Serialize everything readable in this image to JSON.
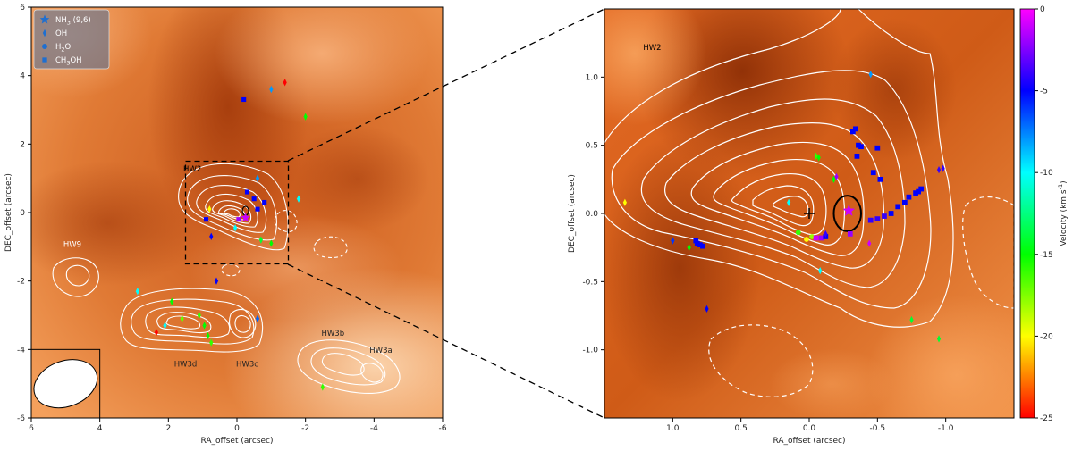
{
  "chart_data": [
    {
      "type": "scatter",
      "panel": "left",
      "xlabel": "RA_offset (arcsec)",
      "ylabel": "DEC_offset (arcsec)",
      "xlim": [
        6,
        -6
      ],
      "ylim": [
        -6,
        6
      ],
      "xticks": [
        "6",
        "4",
        "2",
        "0",
        "-2",
        "-4",
        "-6"
      ],
      "yticks": [
        "6",
        "4",
        "2",
        "0",
        "-2",
        "-4",
        "-6"
      ],
      "legend": {
        "position": "top-left",
        "entries": [
          {
            "marker": "star",
            "label": "NH3 (9,6)",
            "main": "NH",
            "sub": "3",
            "rest": " (9,6)"
          },
          {
            "marker": "diamond",
            "label": "OH",
            "main": "OH",
            "sub": "",
            "rest": ""
          },
          {
            "marker": "circle",
            "label": "H2O",
            "main": "H",
            "sub": "2",
            "rest": "O"
          },
          {
            "marker": "square",
            "label": "CH3OH",
            "main": "CH",
            "sub": "3",
            "rest": "OH"
          }
        ]
      },
      "region_labels": [
        {
          "name": "HW2",
          "x": 1.3,
          "y": 1.2
        },
        {
          "name": "HW9",
          "x": 4.8,
          "y": -1.0
        },
        {
          "name": "HW3d",
          "x": 1.5,
          "y": -4.5
        },
        {
          "name": "HW3c",
          "x": -0.3,
          "y": -4.5
        },
        {
          "name": "HW3b",
          "x": -2.8,
          "y": -3.6
        },
        {
          "name": "HW3a",
          "x": -4.2,
          "y": -4.1
        }
      ],
      "zoom_box": {
        "x": [
          1.5,
          -1.5
        ],
        "y": [
          -1.5,
          1.5
        ]
      },
      "beam": {
        "x": 5.0,
        "y": -5.0,
        "major": 1.0,
        "minor": 0.7,
        "pa_deg": -20
      },
      "points": [
        {
          "type": "diamond",
          "x": -1.4,
          "y": 3.8,
          "v": -30
        },
        {
          "type": "diamond",
          "x": -1.0,
          "y": 3.6,
          "v": -8
        },
        {
          "type": "diamond",
          "x": -2.0,
          "y": 2.8,
          "v": -15
        },
        {
          "type": "square",
          "x": -0.2,
          "y": 3.3,
          "v": -5
        },
        {
          "type": "diamond",
          "x": 0.8,
          "y": 0.1,
          "v": -20
        },
        {
          "type": "square",
          "x": 0.9,
          "y": -0.2,
          "v": -5
        },
        {
          "type": "diamond",
          "x": 0.75,
          "y": -0.7,
          "v": -5
        },
        {
          "type": "square",
          "x": -0.3,
          "y": 0.6,
          "v": -5
        },
        {
          "type": "square",
          "x": -0.5,
          "y": 0.4,
          "v": -5
        },
        {
          "type": "square",
          "x": -0.6,
          "y": 0.1,
          "v": -5
        },
        {
          "type": "square",
          "x": -0.8,
          "y": 0.3,
          "v": -5
        },
        {
          "type": "diamond",
          "x": -0.6,
          "y": 1.0,
          "v": -8
        },
        {
          "type": "square",
          "x": -0.05,
          "y": -0.2,
          "v": -2
        },
        {
          "type": "star",
          "x": -0.25,
          "y": -0.15,
          "v": -1
        },
        {
          "type": "diamond",
          "x": 0.05,
          "y": -0.45,
          "v": -10
        },
        {
          "type": "diamond",
          "x": -0.7,
          "y": -0.8,
          "v": -14
        },
        {
          "type": "diamond",
          "x": -1.0,
          "y": -0.9,
          "v": -15
        },
        {
          "type": "diamond",
          "x": -1.8,
          "y": 0.4,
          "v": -10
        },
        {
          "type": "diamond",
          "x": 0.6,
          "y": -2.0,
          "v": -5
        },
        {
          "type": "diamond",
          "x": 2.9,
          "y": -2.3,
          "v": -10
        },
        {
          "type": "diamond",
          "x": 1.9,
          "y": -2.6,
          "v": -15
        },
        {
          "type": "diamond",
          "x": 1.6,
          "y": -3.1,
          "v": -17
        },
        {
          "type": "diamond",
          "x": 1.1,
          "y": -3.0,
          "v": -16
        },
        {
          "type": "diamond",
          "x": 0.95,
          "y": -3.3,
          "v": -15
        },
        {
          "type": "diamond",
          "x": 0.85,
          "y": -3.6,
          "v": -15
        },
        {
          "type": "diamond",
          "x": 0.75,
          "y": -3.8,
          "v": -16
        },
        {
          "type": "diamond",
          "x": 2.35,
          "y": -3.5,
          "v": -28
        },
        {
          "type": "diamond",
          "x": 2.1,
          "y": -3.3,
          "v": -10
        },
        {
          "type": "diamond",
          "x": -0.6,
          "y": -3.1,
          "v": -7
        },
        {
          "type": "diamond",
          "x": -2.5,
          "y": -5.1,
          "v": -16
        }
      ]
    },
    {
      "type": "scatter",
      "panel": "right",
      "xlabel": "RA_offset (arcsec)",
      "ylabel": "DEC_offset (arcsec)",
      "xlim": [
        1.5,
        -1.5
      ],
      "ylim": [
        -1.5,
        1.5
      ],
      "xticks": [
        "1.0",
        "0.5",
        "0.0",
        "-0.5",
        "-1.0"
      ],
      "yticks": [
        "1.0",
        "0.5",
        "0.0",
        "-0.5",
        "-1.0"
      ],
      "region_labels": [
        {
          "name": "HW2",
          "x": 1.15,
          "y": 1.2
        }
      ],
      "cross": {
        "x": 0.0,
        "y": 0.0
      },
      "ellipse": {
        "x": -0.28,
        "y": 0.0,
        "rx": 0.1,
        "ry": 0.13
      },
      "colorbar": {
        "label": "Velocity (km s",
        "label_sup": "-1",
        "label_end": ")",
        "range": [
          -25,
          0
        ],
        "ticks": [
          "0",
          "-5",
          "-10",
          "-15",
          "-20",
          "-25"
        ],
        "colors": [
          "#ff0000",
          "#ffff00",
          "#00ff00",
          "#00ffff",
          "#0000ff",
          "#ff00ff"
        ]
      },
      "points": [
        {
          "type": "diamond",
          "x": 1.35,
          "y": 0.08,
          "v": -20
        },
        {
          "type": "square",
          "x": 0.83,
          "y": -0.2,
          "v": -5
        },
        {
          "type": "square",
          "x": 0.82,
          "y": -0.22,
          "v": -5
        },
        {
          "type": "square",
          "x": 0.8,
          "y": -0.23,
          "v": -5
        },
        {
          "type": "square",
          "x": 0.78,
          "y": -0.24,
          "v": -5
        },
        {
          "type": "diamond",
          "x": 1.0,
          "y": -0.2,
          "v": -6
        },
        {
          "type": "diamond",
          "x": 0.75,
          "y": -0.7,
          "v": -5
        },
        {
          "type": "diamond",
          "x": 0.88,
          "y": -0.25,
          "v": -15
        },
        {
          "type": "diamond",
          "x": 0.15,
          "y": 0.08,
          "v": -10
        },
        {
          "type": "circle",
          "x": 0.08,
          "y": -0.14,
          "v": -16
        },
        {
          "type": "circle",
          "x": 0.02,
          "y": -0.19,
          "v": -20
        },
        {
          "type": "circle",
          "x": -0.02,
          "y": -0.17,
          "v": -18
        },
        {
          "type": "square",
          "x": -0.05,
          "y": -0.18,
          "v": -1
        },
        {
          "type": "square",
          "x": -0.09,
          "y": -0.18,
          "v": -2
        },
        {
          "type": "square",
          "x": -0.12,
          "y": -0.17,
          "v": -5
        },
        {
          "type": "diamond",
          "x": -0.12,
          "y": -0.15,
          "v": -4
        },
        {
          "type": "diamond",
          "x": -0.05,
          "y": 0.42,
          "v": -16
        },
        {
          "type": "diamond",
          "x": -0.07,
          "y": 0.41,
          "v": -15
        },
        {
          "type": "diamond",
          "x": -0.2,
          "y": 0.27,
          "v": -2
        },
        {
          "type": "diamond",
          "x": -0.18,
          "y": 0.25,
          "v": -15
        },
        {
          "type": "diamond",
          "x": -0.08,
          "y": -0.42,
          "v": -10
        },
        {
          "type": "star",
          "x": -0.29,
          "y": 0.02,
          "v": -1
        },
        {
          "type": "square",
          "x": -0.3,
          "y": -0.15,
          "v": -2
        },
        {
          "type": "diamond",
          "x": -0.44,
          "y": -0.22,
          "v": -1
        },
        {
          "type": "square",
          "x": -0.45,
          "y": -0.05,
          "v": -4
        },
        {
          "type": "square",
          "x": -0.5,
          "y": -0.04,
          "v": -4
        },
        {
          "type": "square",
          "x": -0.55,
          "y": -0.02,
          "v": -4
        },
        {
          "type": "square",
          "x": -0.6,
          "y": 0.0,
          "v": -5
        },
        {
          "type": "square",
          "x": -0.65,
          "y": 0.05,
          "v": -5
        },
        {
          "type": "square",
          "x": -0.7,
          "y": 0.08,
          "v": -5
        },
        {
          "type": "square",
          "x": -0.73,
          "y": 0.12,
          "v": -5
        },
        {
          "type": "square",
          "x": -0.78,
          "y": 0.15,
          "v": -5
        },
        {
          "type": "square",
          "x": -0.82,
          "y": 0.18,
          "v": -5
        },
        {
          "type": "square",
          "x": -0.8,
          "y": 0.16,
          "v": -5
        },
        {
          "type": "square",
          "x": -0.32,
          "y": 0.6,
          "v": -5
        },
        {
          "type": "square",
          "x": -0.34,
          "y": 0.62,
          "v": -5
        },
        {
          "type": "square",
          "x": -0.36,
          "y": 0.5,
          "v": -5
        },
        {
          "type": "square",
          "x": -0.38,
          "y": 0.49,
          "v": -5
        },
        {
          "type": "square",
          "x": -0.35,
          "y": 0.42,
          "v": -5
        },
        {
          "type": "square",
          "x": -0.5,
          "y": 0.48,
          "v": -5
        },
        {
          "type": "square",
          "x": -0.47,
          "y": 0.3,
          "v": -5
        },
        {
          "type": "square",
          "x": -0.52,
          "y": 0.25,
          "v": -5
        },
        {
          "type": "diamond",
          "x": -0.45,
          "y": 1.02,
          "v": -8
        },
        {
          "type": "diamond",
          "x": -0.95,
          "y": 0.32,
          "v": -4
        },
        {
          "type": "diamond",
          "x": -0.98,
          "y": 0.33,
          "v": -4
        },
        {
          "type": "diamond",
          "x": -0.75,
          "y": -0.78,
          "v": -14
        },
        {
          "type": "diamond",
          "x": -0.95,
          "y": -0.92,
          "v": -14
        }
      ]
    }
  ]
}
